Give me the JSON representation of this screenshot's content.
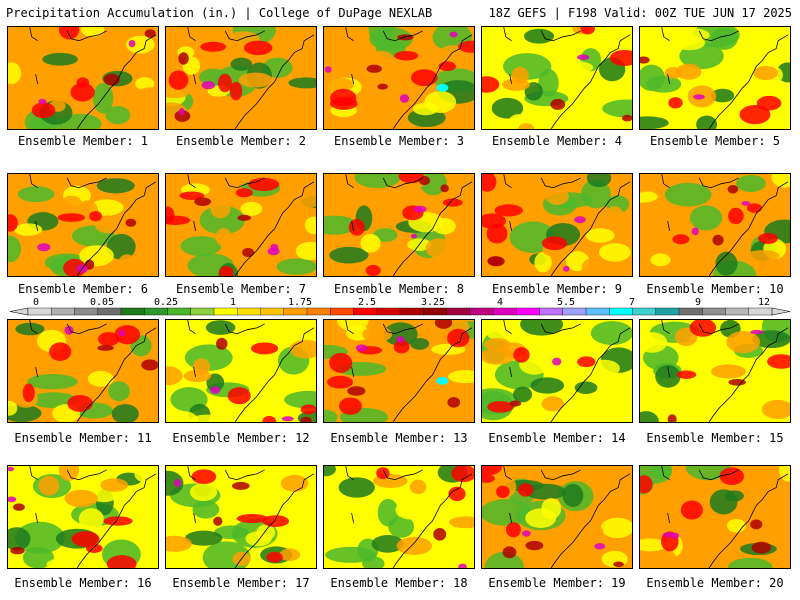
{
  "header": {
    "title_left": "Precipitation Accumulation (in.) | College of DuPage NEXLAB",
    "title_right": "18Z GEFS | F198 Valid: 00Z TUE JUN 17 2025"
  },
  "panels": [
    {
      "label": "Ensemble Member: 1",
      "intensity": 0.55
    },
    {
      "label": "Ensemble Member: 2",
      "intensity": 0.6
    },
    {
      "label": "Ensemble Member: 3",
      "intensity": 0.85
    },
    {
      "label": "Ensemble Member: 4",
      "intensity": 0.4
    },
    {
      "label": "Ensemble Member: 5",
      "intensity": 0.35
    },
    {
      "label": "Ensemble Member: 6",
      "intensity": 0.55
    },
    {
      "label": "Ensemble Member: 7",
      "intensity": 0.75
    },
    {
      "label": "Ensemble Member: 8",
      "intensity": 0.6
    },
    {
      "label": "Ensemble Member: 9",
      "intensity": 0.6
    },
    {
      "label": "Ensemble Member: 10",
      "intensity": 0.55
    },
    {
      "label": "Ensemble Member: 11",
      "intensity": 0.6
    },
    {
      "label": "Ensemble Member: 12",
      "intensity": 0.5
    },
    {
      "label": "Ensemble Member: 13",
      "intensity": 0.8
    },
    {
      "label": "Ensemble Member: 14",
      "intensity": 0.3
    },
    {
      "label": "Ensemble Member: 15",
      "intensity": 0.4
    },
    {
      "label": "Ensemble Member: 16",
      "intensity": 0.5
    },
    {
      "label": "Ensemble Member: 17",
      "intensity": 0.45
    },
    {
      "label": "Ensemble Member: 18",
      "intensity": 0.35
    },
    {
      "label": "Ensemble Member: 19",
      "intensity": 0.7
    },
    {
      "label": "Ensemble Member: 20",
      "intensity": 0.55
    }
  ],
  "colorbar": {
    "labels": [
      "0",
      "0.05",
      "0.25",
      "1",
      "1.75",
      "2.5",
      "3.25",
      "4",
      "5.5",
      "7",
      "9",
      "12"
    ],
    "colors": [
      "#d8d8d8",
      "#b0b0b0",
      "#8c8c8c",
      "#6e6e6e",
      "#1e7a1e",
      "#2e9a2e",
      "#4cb82c",
      "#8fd040",
      "#ffff00",
      "#ffe000",
      "#ffc400",
      "#ffa000",
      "#ff7f00",
      "#ff4a00",
      "#ff0000",
      "#d80000",
      "#b00000",
      "#900000",
      "#a00040",
      "#c00080",
      "#e000c0",
      "#ff00ff",
      "#c070ff",
      "#a0a0ff",
      "#60c0ff",
      "#00ffff",
      "#40d0d0",
      "#20a0a0",
      "#707070",
      "#909090",
      "#b8b8b8",
      "#d8d8d8"
    ]
  },
  "legend_palette": {
    "dark_green": "#1e7a1e",
    "green": "#4cb82c",
    "yellow": "#ffff00",
    "orange": "#ffa000",
    "red": "#ff0000",
    "dark_red": "#b00000",
    "magenta": "#e000c0",
    "cyan": "#00ffff"
  }
}
